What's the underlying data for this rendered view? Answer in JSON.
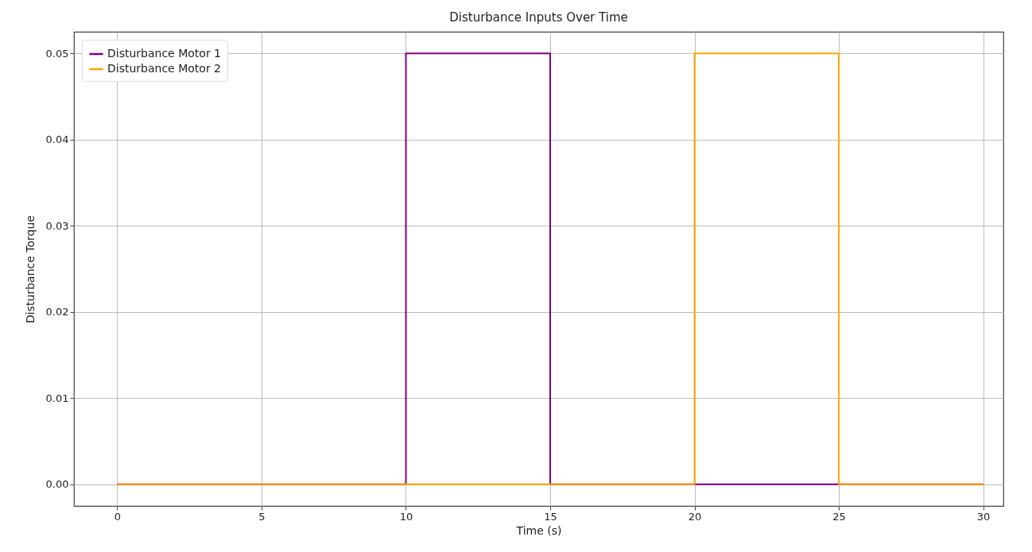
{
  "chart_data": {
    "type": "step",
    "title": "Disturbance Inputs Over Time",
    "xlabel": "Time (s)",
    "ylabel": "Disturbance Torque",
    "x": [
      0,
      10,
      15,
      20,
      25,
      30
    ],
    "series": [
      {
        "name": "Disturbance Motor 1",
        "color": "#800080",
        "values": [
          0,
          0.05,
          0,
          0,
          0,
          0
        ]
      },
      {
        "name": "Disturbance Motor 2",
        "color": "#ffa500",
        "values": [
          0,
          0,
          0,
          0.05,
          0,
          0
        ]
      }
    ],
    "xlim": [
      -1.5,
      30.7
    ],
    "ylim": [
      -0.0025,
      0.0525
    ],
    "xticks": [
      0,
      5,
      10,
      15,
      20,
      25,
      30
    ],
    "yticks": [
      {
        "value": 0,
        "label": "0.00"
      },
      {
        "value": 0.01,
        "label": "0.01"
      },
      {
        "value": 0.02,
        "label": "0.02"
      },
      {
        "value": 0.03,
        "label": "0.03"
      },
      {
        "value": 0.04,
        "label": "0.04"
      },
      {
        "value": 0.05,
        "label": "0.05"
      }
    ],
    "grid": true,
    "legend": "top left"
  }
}
